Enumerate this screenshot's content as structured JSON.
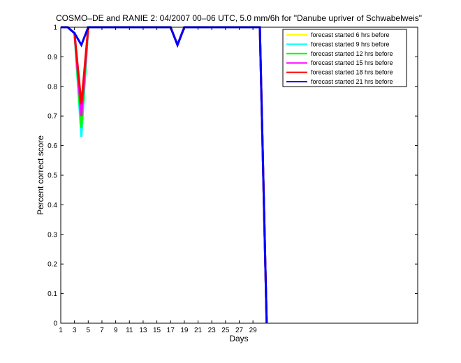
{
  "chart_data": {
    "type": "line",
    "title": "COSMO–DE and RANIE 2: 04/2007 00–06 UTC, 5.0 mm/6h for \"Danube upriver of Schwabelweis\"",
    "xlabel": "Days",
    "ylabel": "Percent correct score",
    "xlim": [
      1,
      53
    ],
    "ylim": [
      0,
      1
    ],
    "xticks": [
      1,
      3,
      5,
      7,
      9,
      11,
      13,
      15,
      17,
      19,
      21,
      23,
      25,
      27,
      29
    ],
    "yticks": [
      0,
      0.1,
      0.2,
      0.3,
      0.4,
      0.5,
      0.6,
      0.7,
      0.8,
      0.9,
      1
    ],
    "ytick_labels": [
      "0",
      "0.1",
      "0.2",
      "0.3",
      "0.4",
      "0.5",
      "0.6",
      "0.7",
      "0.8",
      "0.9",
      "1"
    ],
    "legend_position": "top-right",
    "grid": false,
    "series": [
      {
        "name": "forecast started 6 hrs before",
        "color": "#ffff00",
        "x": [
          1,
          2,
          3,
          4,
          5,
          6,
          7,
          8,
          9,
          10,
          11,
          12,
          13,
          14,
          15,
          16,
          17,
          18,
          19,
          20,
          21,
          22,
          23,
          24,
          25,
          26,
          27,
          28,
          29,
          30,
          31
        ],
        "y": [
          1,
          1,
          0.98,
          0.66,
          1,
          1,
          1,
          1,
          1,
          1,
          1,
          1,
          1,
          1,
          1,
          1,
          1,
          0.94,
          1,
          1,
          1,
          1,
          1,
          1,
          1,
          1,
          1,
          1,
          1,
          1,
          0
        ]
      },
      {
        "name": "forecast started 9 hrs before",
        "color": "#00ffff",
        "x": [
          1,
          2,
          3,
          4,
          5,
          6,
          7,
          8,
          9,
          10,
          11,
          12,
          13,
          14,
          15,
          16,
          17,
          18,
          19,
          20,
          21,
          22,
          23,
          24,
          25,
          26,
          27,
          28,
          29,
          30,
          31
        ],
        "y": [
          1,
          1,
          0.98,
          0.63,
          1,
          1,
          1,
          1,
          1,
          1,
          1,
          1,
          1,
          1,
          1,
          1,
          1,
          0.94,
          1,
          1,
          1,
          1,
          1,
          1,
          1,
          1,
          1,
          1,
          1,
          1,
          0
        ]
      },
      {
        "name": "forecast started 12 hrs before",
        "color": "#00ff00",
        "x": [
          1,
          2,
          3,
          4,
          5,
          6,
          7,
          8,
          9,
          10,
          11,
          12,
          13,
          14,
          15,
          16,
          17,
          18,
          19,
          20,
          21,
          22,
          23,
          24,
          25,
          26,
          27,
          28,
          29,
          30,
          31
        ],
        "y": [
          1,
          1,
          0.98,
          0.66,
          1,
          1,
          1,
          1,
          1,
          1,
          1,
          1,
          1,
          1,
          1,
          1,
          1,
          0.94,
          1,
          1,
          1,
          1,
          1,
          1,
          1,
          1,
          1,
          1,
          1,
          1,
          0
        ]
      },
      {
        "name": "forecast started 15 hrs before",
        "color": "#ff00ff",
        "x": [
          1,
          2,
          3,
          4,
          5,
          6,
          7,
          8,
          9,
          10,
          11,
          12,
          13,
          14,
          15,
          16,
          17,
          18,
          19,
          20,
          21,
          22,
          23,
          24,
          25,
          26,
          27,
          28,
          29,
          30,
          31
        ],
        "y": [
          1,
          1,
          0.98,
          0.7,
          1,
          1,
          1,
          1,
          1,
          1,
          1,
          1,
          1,
          1,
          1,
          1,
          1,
          0.94,
          1,
          1,
          1,
          1,
          1,
          1,
          1,
          1,
          1,
          1,
          1,
          1,
          0
        ]
      },
      {
        "name": "forecast started 18 hrs before",
        "color": "#ff0000",
        "x": [
          1,
          2,
          3,
          4,
          5,
          6,
          7,
          8,
          9,
          10,
          11,
          12,
          13,
          14,
          15,
          16,
          17,
          18,
          19,
          20,
          21,
          22,
          23,
          24,
          25,
          26,
          27,
          28,
          29,
          30,
          31
        ],
        "y": [
          1,
          1,
          0.98,
          0.74,
          1,
          1,
          1,
          1,
          1,
          1,
          1,
          1,
          1,
          1,
          1,
          1,
          1,
          0.94,
          1,
          1,
          1,
          1,
          1,
          1,
          1,
          1,
          1,
          1,
          1,
          1,
          0
        ]
      },
      {
        "name": "forecast started 21 hrs before",
        "color": "#0000ff",
        "x": [
          1,
          2,
          3,
          4,
          5,
          6,
          7,
          8,
          9,
          10,
          11,
          12,
          13,
          14,
          15,
          16,
          17,
          18,
          19,
          20,
          21,
          22,
          23,
          24,
          25,
          26,
          27,
          28,
          29,
          30,
          31
        ],
        "y": [
          1,
          1,
          0.98,
          0.94,
          1,
          1,
          1,
          1,
          1,
          1,
          1,
          1,
          1,
          1,
          1,
          1,
          1,
          0.94,
          1,
          1,
          1,
          1,
          1,
          1,
          1,
          1,
          1,
          1,
          1,
          1,
          0
        ]
      }
    ]
  }
}
